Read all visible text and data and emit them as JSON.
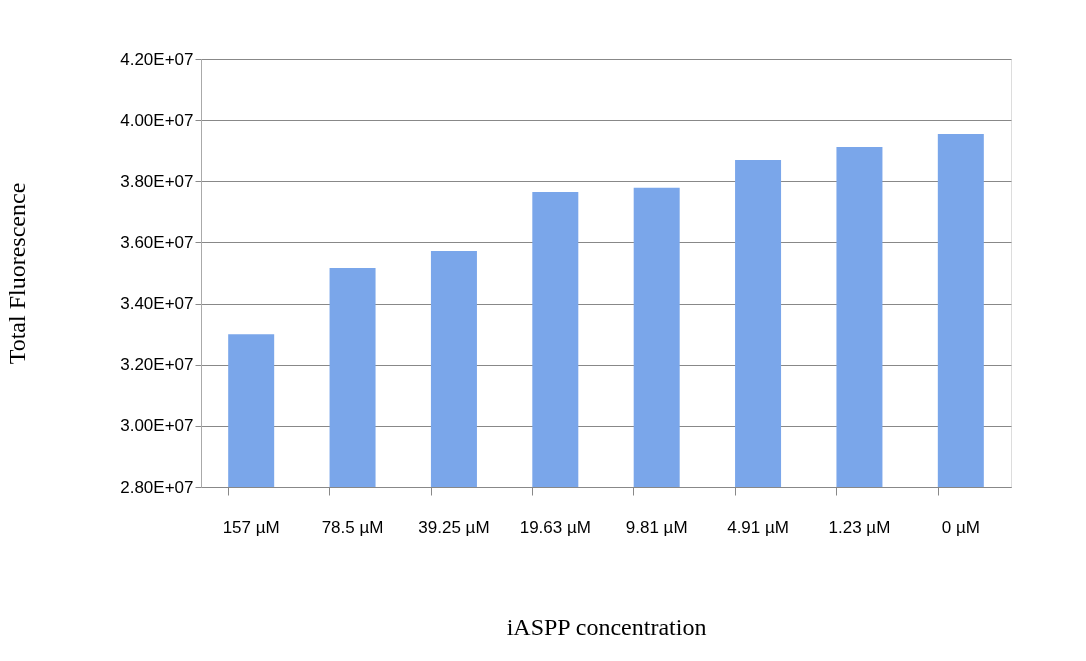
{
  "chart_data": {
    "type": "bar",
    "xlabel": "iASPP concentration",
    "ylabel": "Total Fluorescence",
    "categories": [
      "157 µM",
      "78.5 µM",
      "39.25 µM",
      "19.63 µM",
      "9.81 µM",
      "4.91 µM",
      "1.23 µM",
      "0 µM"
    ],
    "values": [
      33000000,
      35160000,
      35720000,
      37650000,
      37790000,
      38700000,
      39120000,
      39550000
    ],
    "color": "#7aa6ea",
    "ylim": [
      28000000,
      42000000
    ],
    "yticks": [
      {
        "value": 28000000,
        "label": "2.80E+07"
      },
      {
        "value": 30000000,
        "label": "3.00E+07"
      },
      {
        "value": 32000000,
        "label": "3.20E+07"
      },
      {
        "value": 34000000,
        "label": "3.40E+07"
      },
      {
        "value": 36000000,
        "label": "3.60E+07"
      },
      {
        "value": 38000000,
        "label": "3.80E+07"
      },
      {
        "value": 40000000,
        "label": "4.00E+07"
      },
      {
        "value": 42000000,
        "label": "4.20E+07"
      }
    ],
    "grid": "y"
  }
}
